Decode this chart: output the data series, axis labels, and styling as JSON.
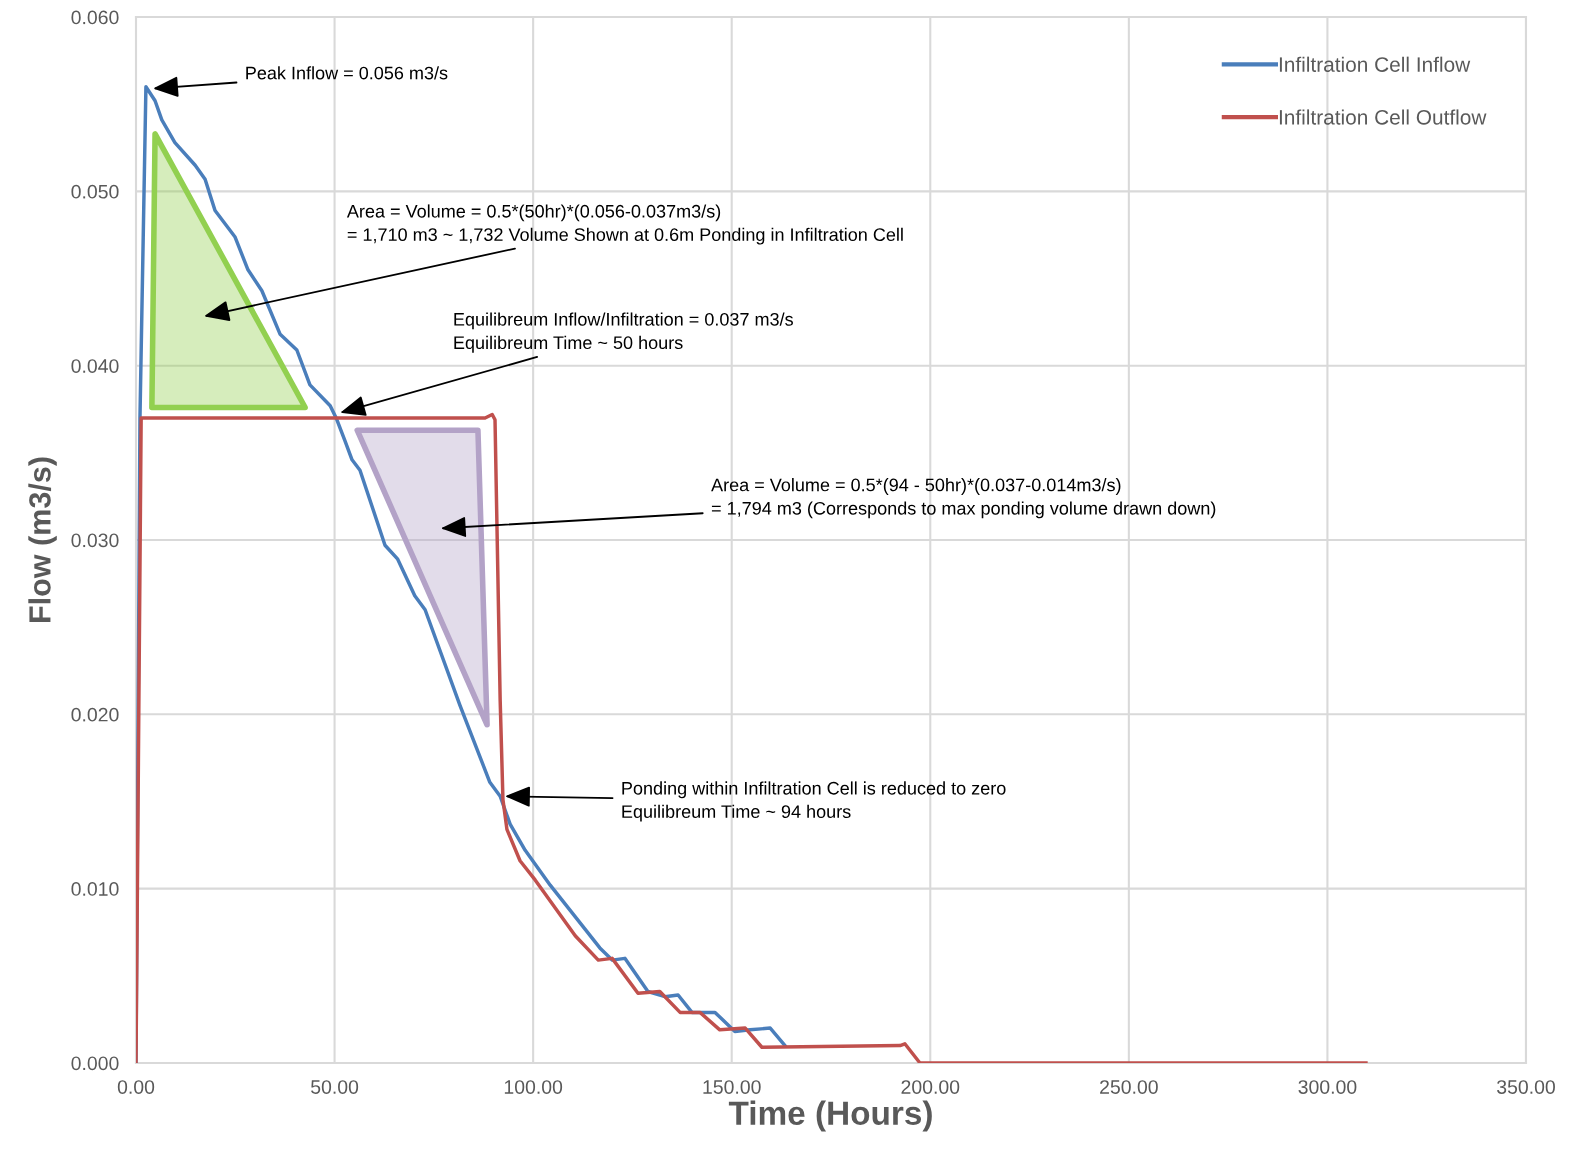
{
  "chart_data": {
    "type": "line",
    "xlabel": "Time (Hours)",
    "ylabel": "Flow (m3/s)",
    "xlim": [
      0,
      350
    ],
    "xticks": [
      {
        "value": 0,
        "label": "0.00"
      },
      {
        "value": 50,
        "label": "50.00"
      },
      {
        "value": 100,
        "label": "100.00"
      },
      {
        "value": 150,
        "label": "150.00"
      },
      {
        "value": 200,
        "label": "200.00"
      },
      {
        "value": 250,
        "label": "250.00"
      },
      {
        "value": 300,
        "label": "300.00"
      },
      {
        "value": 350,
        "label": "350.00"
      }
    ],
    "ylim": [
      0,
      0.06
    ],
    "yticks": [
      {
        "value": 0,
        "label": "0.000"
      },
      {
        "value": 0.01,
        "label": "0.010"
      },
      {
        "value": 0.02,
        "label": "0.020"
      },
      {
        "value": 0.03,
        "label": "0.030"
      },
      {
        "value": 0.04,
        "label": "0.040"
      },
      {
        "value": 0.05,
        "label": "0.050"
      },
      {
        "value": 0.06,
        "label": "0.060"
      }
    ],
    "grid": true,
    "legend": "top right",
    "series": [
      {
        "name": "Infiltration Cell Inflow",
        "color": "#4a7ebb",
        "x": [
          0,
          1,
          2.5,
          4.8,
          6.5,
          9.8,
          14.9,
          17.4,
          19.9,
          24.9,
          28.2,
          31.7,
          36.3,
          40.5,
          43.8,
          48.9,
          50.4,
          52.6,
          54.4,
          56.4,
          62.7,
          65.9,
          70.2,
          72.8,
          81.6,
          89.1,
          91.7,
          94.2,
          98,
          104.3,
          116.8,
          119.9,
          123.1,
          128.9,
          133.2,
          136.5,
          140,
          145.8,
          150.8,
          154.6,
          159.7,
          163.4
        ],
        "values": [
          0,
          0.037,
          0.056,
          0.0552,
          0.0541,
          0.0528,
          0.0515,
          0.0507,
          0.0489,
          0.0474,
          0.0455,
          0.0443,
          0.0418,
          0.0409,
          0.0389,
          0.0377,
          0.037,
          0.0357,
          0.0346,
          0.034,
          0.0297,
          0.0289,
          0.0268,
          0.026,
          0.0205,
          0.0161,
          0.0153,
          0.0137,
          0.0122,
          0.0102,
          0.0066,
          0.0059,
          0.006,
          0.0041,
          0.0038,
          0.0039,
          0.0029,
          0.0029,
          0.0018,
          0.0019,
          0.002,
          0.001
        ]
      },
      {
        "name": "Infiltration Cell Outflow",
        "color": "#c0504d",
        "x": [
          0,
          1.3,
          87.9,
          89.7,
          90.4,
          91.7,
          92.4,
          93.4,
          96.7,
          100.5,
          110.6,
          116.4,
          119.9,
          126.4,
          131.9,
          137,
          142,
          147,
          153.4,
          157.6,
          192.4,
          193.6,
          197.4,
          309.7
        ],
        "values": [
          0,
          0.037,
          0.037,
          0.0372,
          0.0369,
          0.0208,
          0.0151,
          0.0134,
          0.0116,
          0.0105,
          0.0073,
          0.0059,
          0.006,
          0.004,
          0.0041,
          0.0029,
          0.0029,
          0.0019,
          0.002,
          0.0009,
          0.001,
          0.0011,
          0,
          0
        ]
      },
      {
        "color": "#92d050",
        "type": "area",
        "x": [
          4.8,
          4.0,
          42.6
        ],
        "values": [
          0.0533,
          0.0376,
          0.0376
        ]
      },
      {
        "color": "#b3a2c7",
        "type": "area",
        "x": [
          55.7,
          86.1,
          88.4
        ],
        "values": [
          0.0363,
          0.0363,
          0.0194
        ]
      }
    ],
    "annotations": [
      {
        "text": "Peak Inflow = 0.056 m3/s",
        "x": 4.3,
        "y": 0.0559
      },
      "Area = Volume = 0.5*(50hr)*(0.056-0.037m3/s)\n= 1,710 m3 ~ 1,732 Volume Shown at 0.6m Ponding in Infiltration Cell",
      {
        "text": "Equilibreum Inflow/Infiltration = 0.037 m3/s\nEquilibreum Time ~ 50 hours",
        "x": 51.4,
        "y": 0.0373
      },
      "Area = Volume = 0.5*(94 - 50hr)*(0.037-0.014m3/s)\n= 1,794 m3 (Corresponds to max ponding volume drawn down)",
      {
        "text": "Ponding within Infiltration Cell is reduced to zero\nEquilibreum Time ~ 94 hours",
        "x": 92.9,
        "y": 0.0153
      }
    ]
  }
}
